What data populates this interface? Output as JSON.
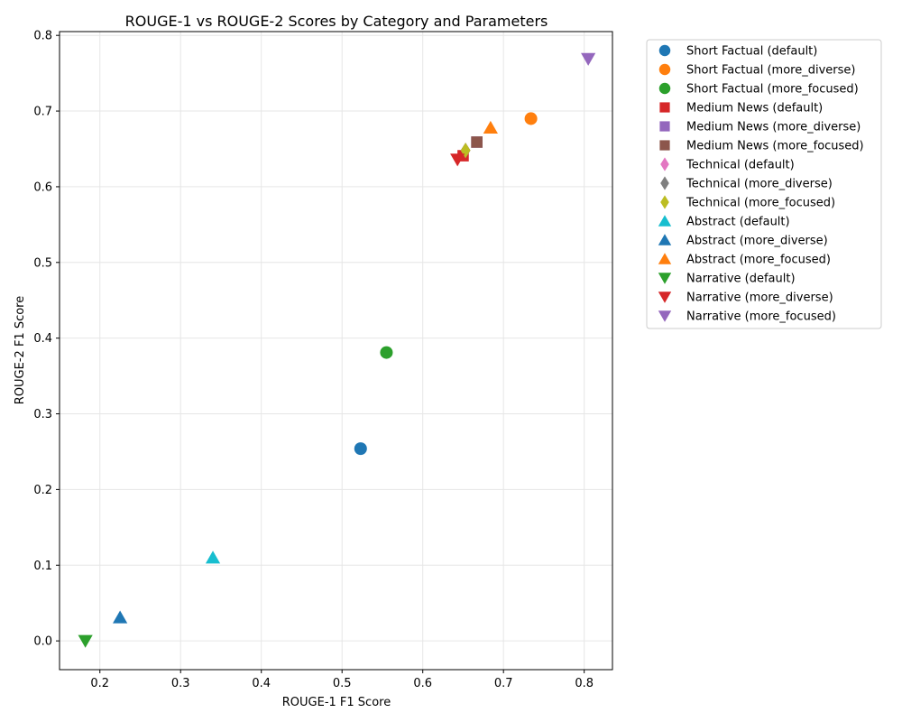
{
  "chart_data": {
    "type": "scatter",
    "title": "ROUGE-1 vs ROUGE-2 Scores by Category and Parameters",
    "xlabel": "ROUGE-1 F1 Score",
    "ylabel": "ROUGE-2 F1 Score",
    "xlim": [
      0.15,
      0.835
    ],
    "ylim": [
      -0.038,
      0.805
    ],
    "xticks": [
      0.2,
      0.3,
      0.4,
      0.5,
      0.6,
      0.7,
      0.8
    ],
    "yticks": [
      0.0,
      0.1,
      0.2,
      0.3,
      0.4,
      0.5,
      0.6,
      0.7,
      0.8
    ],
    "xtick_labels": [
      "0.2",
      "0.3",
      "0.4",
      "0.5",
      "0.6",
      "0.7",
      "0.8"
    ],
    "ytick_labels": [
      "0.0",
      "0.1",
      "0.2",
      "0.3",
      "0.4",
      "0.5",
      "0.6",
      "0.7",
      "0.8"
    ],
    "grid": true,
    "legend_position": "outside-right",
    "series": [
      {
        "name": "Short Factual (default)",
        "marker": "circle",
        "color": "#1f77b4",
        "x": 0.523,
        "y": 0.254
      },
      {
        "name": "Short Factual (more_diverse)",
        "marker": "circle",
        "color": "#ff7f0e",
        "x": 0.734,
        "y": 0.69
      },
      {
        "name": "Short Factual (more_focused)",
        "marker": "circle",
        "color": "#2ca02c",
        "x": 0.555,
        "y": 0.381
      },
      {
        "name": "Medium News (default)",
        "marker": "square",
        "color": "#d62728",
        "x": 0.65,
        "y": 0.641
      },
      {
        "name": "Medium News (more_diverse)",
        "marker": "square",
        "color": "#9467bd",
        "x": 0.667,
        "y": 0.659
      },
      {
        "name": "Medium News (more_focused)",
        "marker": "square",
        "color": "#8c564b",
        "x": 0.667,
        "y": 0.659
      },
      {
        "name": "Technical (default)",
        "marker": "diamond",
        "color": "#e377c2",
        "x": 0.653,
        "y": 0.648
      },
      {
        "name": "Technical (more_diverse)",
        "marker": "diamond",
        "color": "#7f7f7f",
        "x": 0.653,
        "y": 0.648
      },
      {
        "name": "Technical (more_focused)",
        "marker": "diamond",
        "color": "#bcbd22",
        "x": 0.653,
        "y": 0.648
      },
      {
        "name": "Abstract (default)",
        "marker": "triangle-up",
        "color": "#17becf",
        "x": 0.34,
        "y": 0.11
      },
      {
        "name": "Abstract (more_diverse)",
        "marker": "triangle-up",
        "color": "#1f77b4",
        "x": 0.225,
        "y": 0.031
      },
      {
        "name": "Abstract (more_focused)",
        "marker": "triangle-up",
        "color": "#ff7f0e",
        "x": 0.684,
        "y": 0.678
      },
      {
        "name": "Narrative (default)",
        "marker": "triangle-down",
        "color": "#2ca02c",
        "x": 0.182,
        "y": 0.0
      },
      {
        "name": "Narrative (more_diverse)",
        "marker": "triangle-down",
        "color": "#d62728",
        "x": 0.643,
        "y": 0.636
      },
      {
        "name": "Narrative (more_focused)",
        "marker": "triangle-down",
        "color": "#9467bd",
        "x": 0.805,
        "y": 0.769
      }
    ]
  }
}
